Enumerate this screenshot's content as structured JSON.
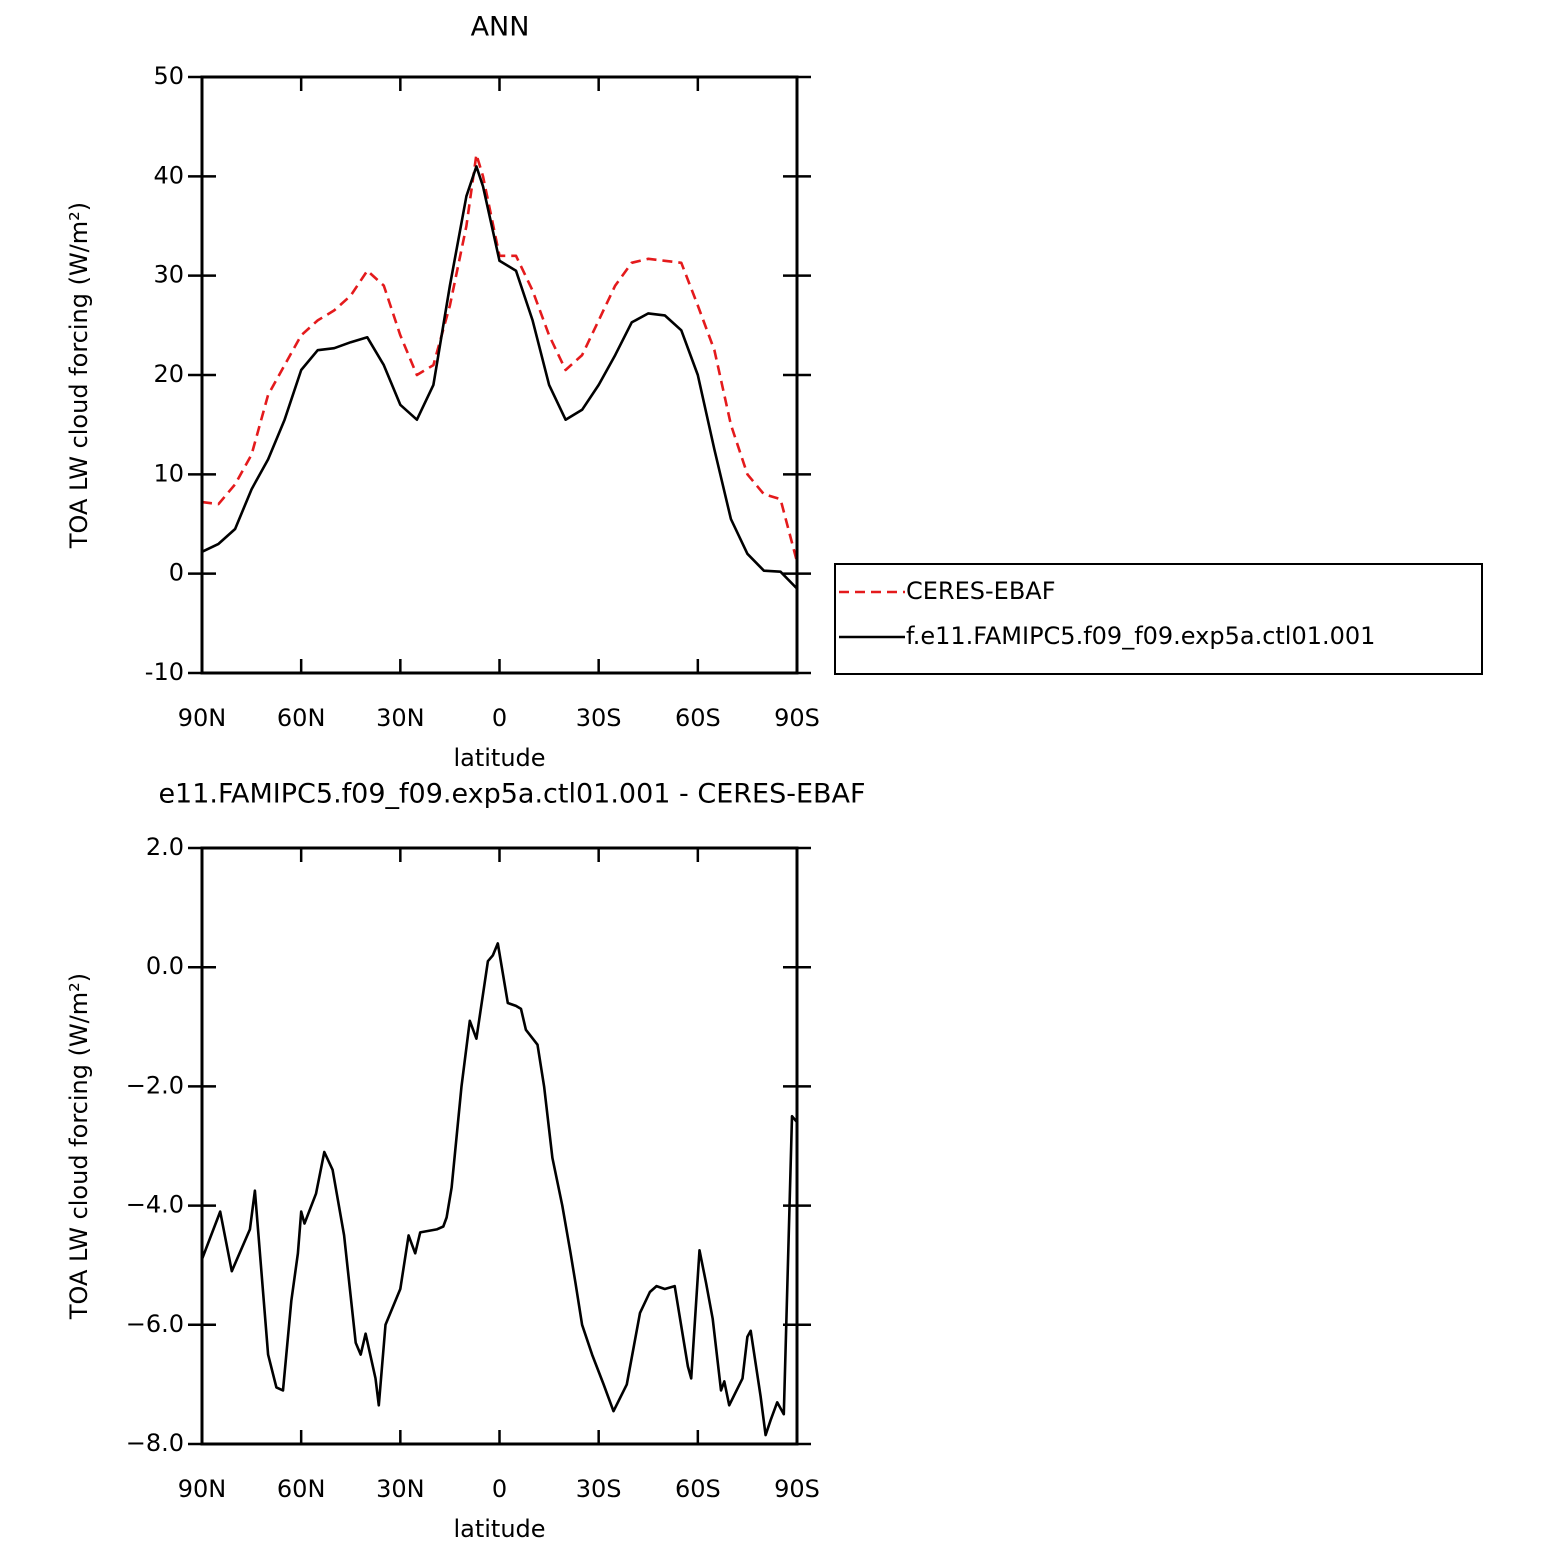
{
  "chart_data": [
    {
      "type": "line",
      "title": "ANN",
      "xlabel": "latitude",
      "ylabel": "TOA LW cloud forcing (W/m²)",
      "x": [
        90,
        85,
        80,
        75,
        70,
        65,
        60,
        55,
        50,
        45,
        40,
        35,
        30,
        25,
        20,
        15,
        10,
        7,
        5,
        0,
        -5,
        -10,
        -15,
        -20,
        -25,
        -30,
        -35,
        -40,
        -45,
        -50,
        -55,
        -60,
        -65,
        -70,
        -75,
        -80,
        -85,
        -90
      ],
      "series": [
        {
          "name": "CERES-EBAF",
          "color": "#e41a1c",
          "linestyle": "dashed",
          "values": [
            7.2,
            7.0,
            9.0,
            12,
            18,
            21,
            24,
            25.5,
            26.5,
            28,
            30.5,
            29,
            24,
            20,
            21,
            27,
            35,
            42.2,
            40,
            32,
            32,
            28.5,
            24,
            20.5,
            22,
            25.5,
            29,
            31.3,
            31.7,
            31.5,
            31.3,
            27,
            22.5,
            15,
            10,
            8,
            7.5,
            1.2
          ]
        },
        {
          "name": "f.e11.FAMIPC5.f09_f09.exp5a.ctl01.001",
          "color": "#000000",
          "linestyle": "solid",
          "values": [
            2.2,
            3.0,
            4.5,
            8.5,
            11.5,
            15.5,
            20.5,
            22.5,
            22.7,
            23.3,
            23.8,
            21,
            17,
            15.5,
            19,
            29,
            38,
            41,
            39,
            31.5,
            30.5,
            25.5,
            19,
            15.5,
            16.5,
            19,
            22,
            25.3,
            26.2,
            26,
            24.5,
            20,
            12.5,
            5.5,
            2,
            0.3,
            0.2,
            -1.5
          ]
        }
      ],
      "xlim": [
        90,
        -90
      ],
      "xticks": [
        {
          "value": 90,
          "label": "90N"
        },
        {
          "value": 60,
          "label": "60N"
        },
        {
          "value": 30,
          "label": "30N"
        },
        0,
        {
          "value": -30,
          "label": "30S"
        },
        {
          "value": -60,
          "label": "60S"
        },
        {
          "value": -90,
          "label": "90S"
        }
      ],
      "ylim": [
        -10,
        50
      ],
      "yticks": [
        -10,
        0,
        10,
        20,
        30,
        40,
        50
      ],
      "legend": "outside right"
    },
    {
      "type": "line",
      "title": "e11.FAMIPC5.f09_f09.exp5a.ctl01.001 - CERES-EBAF",
      "xlabel": "latitude",
      "ylabel": "TOA LW cloud forcing (W/m²)",
      "x": [
        90,
        84.5,
        81,
        75.5,
        74,
        70,
        67.5,
        65.5,
        63,
        61,
        60,
        59,
        55.5,
        53,
        50.5,
        47,
        43.5,
        42,
        40.5,
        37.5,
        36.5,
        34.5,
        30,
        27.5,
        25.5,
        24,
        19,
        17,
        16,
        14.5,
        11.5,
        9,
        7,
        3.5,
        2,
        0.5,
        -2.5,
        -5,
        -6.5,
        -8,
        -11.5,
        -13.5,
        -16,
        -19,
        -21.5,
        -23,
        -25,
        -28,
        -31.5,
        -34.5,
        -38.5,
        -42.5,
        -45.5,
        -47.5,
        -50,
        -53,
        -57,
        -58,
        -60.5,
        -62.5,
        -64.5,
        -67,
        -68,
        -69.5,
        -73.5,
        -75,
        -76,
        -79,
        -80.5,
        -82,
        -84,
        -86,
        -88.5,
        -90
      ],
      "color": "#000000",
      "values": [
        -4.9,
        -4.1,
        -5.1,
        -4.4,
        -3.75,
        -6.5,
        -7.05,
        -7.1,
        -5.6,
        -4.8,
        -4.1,
        -4.3,
        -3.8,
        -3.1,
        -3.4,
        -4.5,
        -6.3,
        -6.5,
        -6.15,
        -6.9,
        -7.35,
        -6.0,
        -5.4,
        -4.5,
        -4.8,
        -4.45,
        -4.4,
        -4.35,
        -4.2,
        -3.7,
        -2.0,
        -0.9,
        -1.2,
        0.1,
        0.2,
        0.4,
        -0.6,
        -0.65,
        -0.7,
        -1.05,
        -1.3,
        -2.0,
        -3.2,
        -4.0,
        -4.8,
        -5.3,
        -6.0,
        -6.5,
        -7.0,
        -7.45,
        -7.0,
        -5.8,
        -5.45,
        -5.35,
        -5.4,
        -5.35,
        -6.7,
        -6.9,
        -4.75,
        -5.3,
        -5.9,
        -7.1,
        -6.95,
        -7.35,
        -6.9,
        -6.2,
        -6.1,
        -7.2,
        -7.85,
        -7.6,
        -7.3,
        -7.5,
        -2.5,
        -2.6
      ],
      "xlim": [
        90,
        -90
      ],
      "xticks": [
        {
          "value": 90,
          "label": "90N"
        },
        {
          "value": 60,
          "label": "60N"
        },
        {
          "value": 30,
          "label": "30N"
        },
        0,
        {
          "value": -30,
          "label": "30S"
        },
        {
          "value": -60,
          "label": "60S"
        },
        {
          "value": -90,
          "label": "90S"
        }
      ],
      "ylim": [
        -8,
        2
      ],
      "yticks": [
        {
          "value": -8,
          "label": "−8.0"
        },
        {
          "value": -6,
          "label": "−6.0"
        },
        {
          "value": -4,
          "label": "−4.0"
        },
        {
          "value": -2,
          "label": "−2.0"
        },
        {
          "value": 0,
          "label": "0.0"
        },
        {
          "value": 2,
          "label": "2.0"
        }
      ]
    }
  ]
}
